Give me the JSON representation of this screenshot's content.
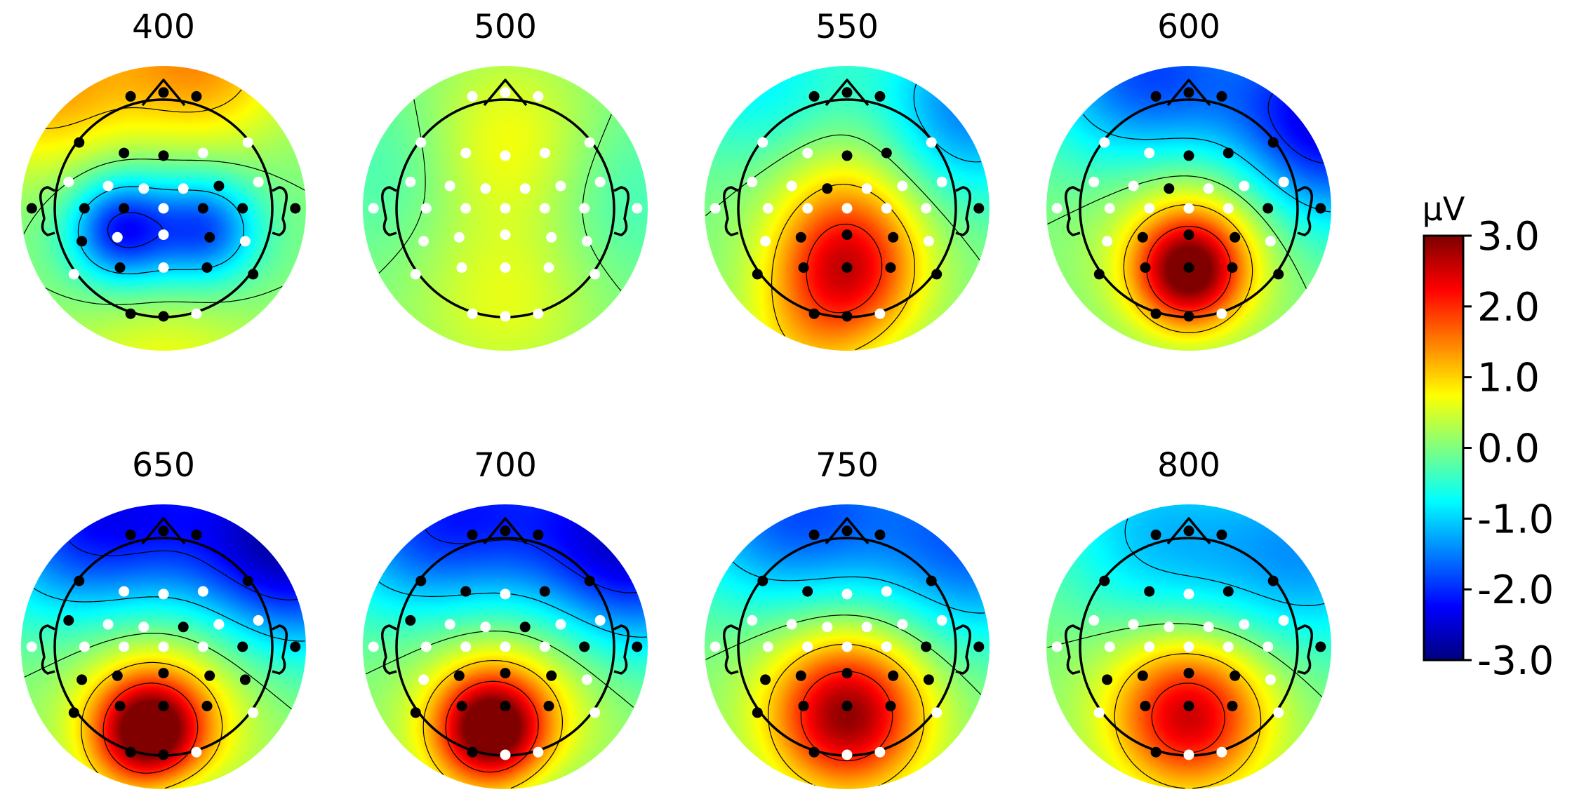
{
  "chart_data": {
    "type": "heatmap",
    "subtype": "eeg-topomap-grid",
    "colormap": "jet",
    "panels": [
      {
        "title": "400",
        "blobs": [
          {
            "x": -0.3,
            "y": -0.15,
            "amp": -1.9,
            "s": 0.25
          },
          {
            "x": 0.3,
            "y": -0.15,
            "amp": -1.5,
            "s": 0.25
          },
          {
            "x": 0.0,
            "y": -0.28,
            "amp": -0.6,
            "s": 0.45
          },
          {
            "x": -0.85,
            "y": 0.9,
            "amp": 1.3,
            "s": 0.45
          },
          {
            "x": 0.25,
            "y": 1.05,
            "amp": 1.4,
            "s": 0.45
          },
          {
            "x": 0.0,
            "y": -1.0,
            "amp": 0.8,
            "s": 0.5
          }
        ],
        "sig": [
          0,
          1,
          2,
          3,
          4,
          5,
          12,
          14,
          15,
          16,
          18,
          19,
          20,
          21,
          24,
          27,
          29,
          30,
          31,
          32
        ]
      },
      {
        "title": "500",
        "blobs": [
          {
            "x": 0.0,
            "y": 0.45,
            "amp": 0.8,
            "s": 0.45
          },
          {
            "x": 0.0,
            "y": -0.65,
            "amp": 0.6,
            "s": 0.45
          },
          {
            "x": -0.75,
            "y": 0.3,
            "amp": -0.4,
            "s": 0.45
          },
          {
            "x": 0.8,
            "y": 0.1,
            "amp": -0.4,
            "s": 0.45
          }
        ],
        "sig": []
      },
      {
        "title": "550",
        "blobs": [
          {
            "x": 0.0,
            "y": -0.45,
            "amp": 2.1,
            "s": 0.35
          },
          {
            "x": 0.0,
            "y": 0.05,
            "amp": 0.8,
            "s": 0.4
          },
          {
            "x": 0.85,
            "y": 0.7,
            "amp": -1.5,
            "s": 0.45
          },
          {
            "x": -0.6,
            "y": 0.9,
            "amp": -0.8,
            "s": 0.45
          },
          {
            "x": -0.3,
            "y": -0.95,
            "amp": 0.6,
            "s": 0.35
          }
        ],
        "sig": [
          0,
          1,
          2,
          5,
          6,
          10,
          20,
          22,
          23,
          24,
          26,
          27,
          28,
          29,
          30,
          31,
          32
        ]
      },
      {
        "title": "600",
        "blobs": [
          {
            "x": 0.0,
            "y": -0.45,
            "amp": 2.7,
            "s": 0.26
          },
          {
            "x": 0.0,
            "y": -0.2,
            "amp": 0.8,
            "s": 0.45
          },
          {
            "x": 0.95,
            "y": 0.6,
            "amp": -2.4,
            "s": 0.5
          },
          {
            "x": -0.3,
            "y": 0.95,
            "amp": -1.8,
            "s": 0.5
          },
          {
            "x": 0.2,
            "y": 0.0,
            "amp": 0.3,
            "s": 0.4
          }
        ],
        "sig": [
          0,
          1,
          2,
          5,
          6,
          7,
          10,
          19,
          20,
          22,
          23,
          24,
          26,
          27,
          28,
          29,
          30,
          31,
          32
        ]
      },
      {
        "title": "650",
        "blobs": [
          {
            "x": -0.1,
            "y": -0.6,
            "amp": 3.0,
            "s": 0.26
          },
          {
            "x": 0.0,
            "y": -0.4,
            "amp": 1.0,
            "s": 0.5
          },
          {
            "x": 0.9,
            "y": 0.7,
            "amp": -2.6,
            "s": 0.5
          },
          {
            "x": -0.6,
            "y": 0.85,
            "amp": -1.7,
            "s": 0.5
          },
          {
            "x": 0.0,
            "y": 1.0,
            "amp": -1.0,
            "s": 0.5
          },
          {
            "x": 0.1,
            "y": -1.05,
            "amp": -0.4,
            "s": 0.25
          }
        ],
        "sig": [
          0,
          1,
          2,
          3,
          7,
          8,
          11,
          19,
          20,
          21,
          22,
          23,
          24,
          25,
          26,
          27,
          28,
          29,
          31,
          32
        ]
      },
      {
        "title": "700",
        "blobs": [
          {
            "x": -0.1,
            "y": -0.58,
            "amp": 2.9,
            "s": 0.26
          },
          {
            "x": 0.0,
            "y": -0.4,
            "amp": 1.0,
            "s": 0.5
          },
          {
            "x": 0.9,
            "y": 0.7,
            "amp": -2.4,
            "s": 0.5
          },
          {
            "x": -0.6,
            "y": 0.85,
            "amp": -1.5,
            "s": 0.5
          },
          {
            "x": 0.0,
            "y": 1.0,
            "amp": -1.0,
            "s": 0.5
          },
          {
            "x": 0.3,
            "y": -1.05,
            "amp": -0.3,
            "s": 0.3
          }
        ],
        "sig": [
          0,
          1,
          2,
          3,
          4,
          6,
          7,
          8,
          11,
          19,
          20,
          22,
          23,
          24,
          26,
          27,
          28,
          29,
          31
        ]
      },
      {
        "title": "750",
        "blobs": [
          {
            "x": 0.0,
            "y": -0.5,
            "amp": 2.2,
            "s": 0.35
          },
          {
            "x": 0.0,
            "y": -0.3,
            "amp": 0.8,
            "s": 0.5
          },
          {
            "x": 0.9,
            "y": 0.7,
            "amp": -1.6,
            "s": 0.5
          },
          {
            "x": -0.5,
            "y": 0.9,
            "amp": -1.3,
            "s": 0.5
          },
          {
            "x": 0.0,
            "y": 1.0,
            "amp": -0.7,
            "s": 0.5
          }
        ],
        "sig": [
          0,
          1,
          2,
          3,
          4,
          7,
          19,
          20,
          21,
          22,
          23,
          24,
          25,
          26,
          27,
          28,
          29,
          31
        ]
      },
      {
        "title": "800",
        "blobs": [
          {
            "x": 0.0,
            "y": -0.5,
            "amp": 1.9,
            "s": 0.35
          },
          {
            "x": 0.0,
            "y": -0.3,
            "amp": 0.8,
            "s": 0.5
          },
          {
            "x": 0.85,
            "y": 0.65,
            "amp": -1.3,
            "s": 0.5
          },
          {
            "x": -0.3,
            "y": 0.85,
            "amp": -0.9,
            "s": 0.5
          },
          {
            "x": 0.0,
            "y": 0.35,
            "amp": -0.4,
            "s": 0.45
          }
        ],
        "sig": [
          0,
          1,
          2,
          3,
          4,
          6,
          7,
          20,
          21,
          22,
          23,
          24,
          27,
          28,
          29,
          31
        ]
      }
    ],
    "electrodes": [
      [
        -0.25,
        0.85
      ],
      [
        0.0,
        0.88
      ],
      [
        0.25,
        0.85
      ],
      [
        -0.64,
        0.5
      ],
      [
        -0.3,
        0.42
      ],
      [
        0.0,
        0.4
      ],
      [
        0.3,
        0.42
      ],
      [
        0.64,
        0.5
      ],
      [
        -0.72,
        0.2
      ],
      [
        -0.42,
        0.17
      ],
      [
        -0.15,
        0.15
      ],
      [
        0.15,
        0.15
      ],
      [
        0.42,
        0.17
      ],
      [
        0.72,
        0.2
      ],
      [
        -1.0,
        0.0
      ],
      [
        -0.6,
        0.0
      ],
      [
        -0.3,
        0.0
      ],
      [
        0.0,
        0.0
      ],
      [
        0.3,
        0.0
      ],
      [
        0.6,
        0.0
      ],
      [
        1.0,
        0.0
      ],
      [
        -0.62,
        -0.25
      ],
      [
        -0.35,
        -0.22
      ],
      [
        0.0,
        -0.2
      ],
      [
        0.35,
        -0.22
      ],
      [
        0.62,
        -0.25
      ],
      [
        -0.68,
        -0.5
      ],
      [
        -0.33,
        -0.45
      ],
      [
        0.0,
        -0.45
      ],
      [
        0.33,
        -0.45
      ],
      [
        0.68,
        -0.5
      ],
      [
        -0.25,
        -0.8
      ],
      [
        0.0,
        -0.82
      ],
      [
        0.25,
        -0.8
      ]
    ],
    "contour_levels": [
      -2.0,
      -1.0,
      0.0,
      1.0,
      2.0
    ],
    "colorbar": {
      "label": "µV",
      "range": [
        -3.0,
        3.0
      ],
      "ticks": [
        "3.0",
        "2.0",
        "1.0",
        "0.0",
        "-1.0",
        "-2.0",
        "-3.0"
      ],
      "tick_values": [
        3.0,
        2.0,
        1.0,
        0.0,
        -1.0,
        -2.0,
        -3.0
      ]
    }
  }
}
